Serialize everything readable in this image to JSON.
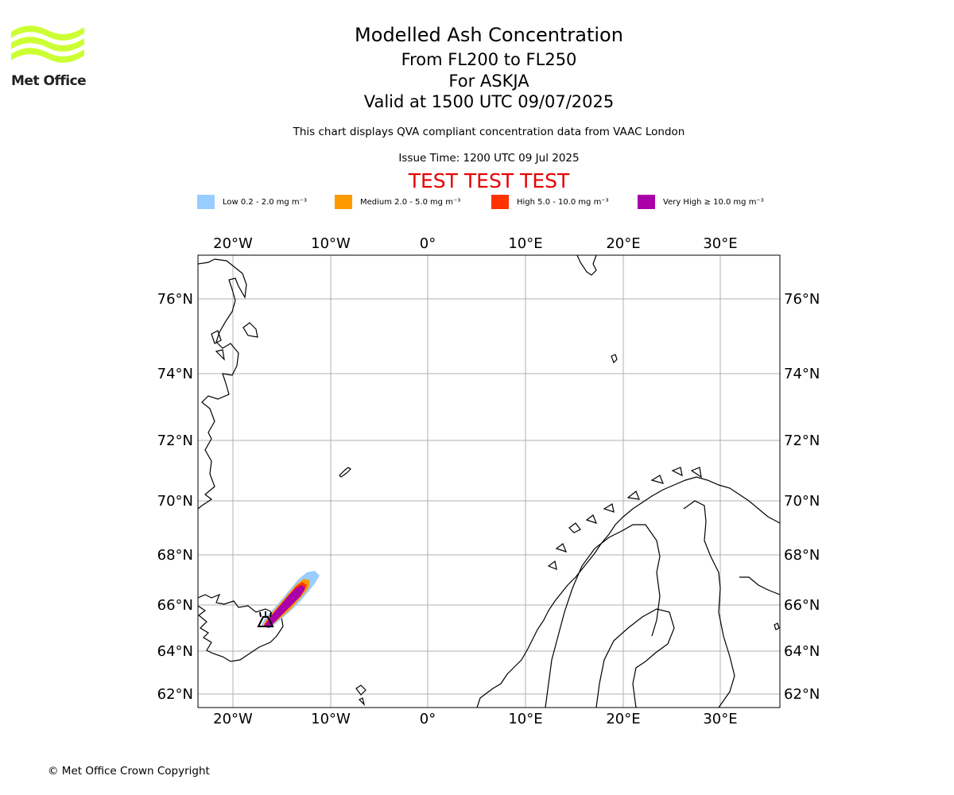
{
  "branding": {
    "logo_text": "Met Office",
    "logo_color": "#ccff33"
  },
  "header": {
    "title": "Modelled Ash Concentration",
    "flight_levels": "From FL200 to FL250",
    "volcano_line": "For ASKJA",
    "valid_time": "Valid at 1500 UTC 09/07/2025",
    "description": "This chart displays QVA compliant concentration data from VAAC London",
    "issue_time": "Issue Time: 1200 UTC 09 Jul 2025",
    "test_banner": "TEST TEST TEST"
  },
  "legend": [
    {
      "label": "Low 0.2 - 2.0",
      "unit": "mg m⁻³",
      "color": "#99ccff"
    },
    {
      "label": "Medium 2.0 - 5.0",
      "unit": "mg m⁻³",
      "color": "#ff9900"
    },
    {
      "label": "High 5.0 - 10.0",
      "unit": "mg m⁻³",
      "color": "#ff3300"
    },
    {
      "label": "Very High ≥ 10.0",
      "unit": "mg m⁻³",
      "color": "#aa00aa"
    }
  ],
  "map": {
    "lon_ticks": [
      "20°W",
      "10°W",
      "0°",
      "10°E",
      "20°E",
      "30°E"
    ],
    "lat_ticks": [
      "76°N",
      "74°N",
      "72°N",
      "70°N",
      "68°N",
      "66°N",
      "64°N",
      "62°N"
    ],
    "volcano_marker_icon": "volcano-icon",
    "plume_levels": [
      "Low",
      "Medium",
      "High",
      "Very High"
    ]
  },
  "footer": {
    "copyright": "© Met Office Crown Copyright"
  }
}
